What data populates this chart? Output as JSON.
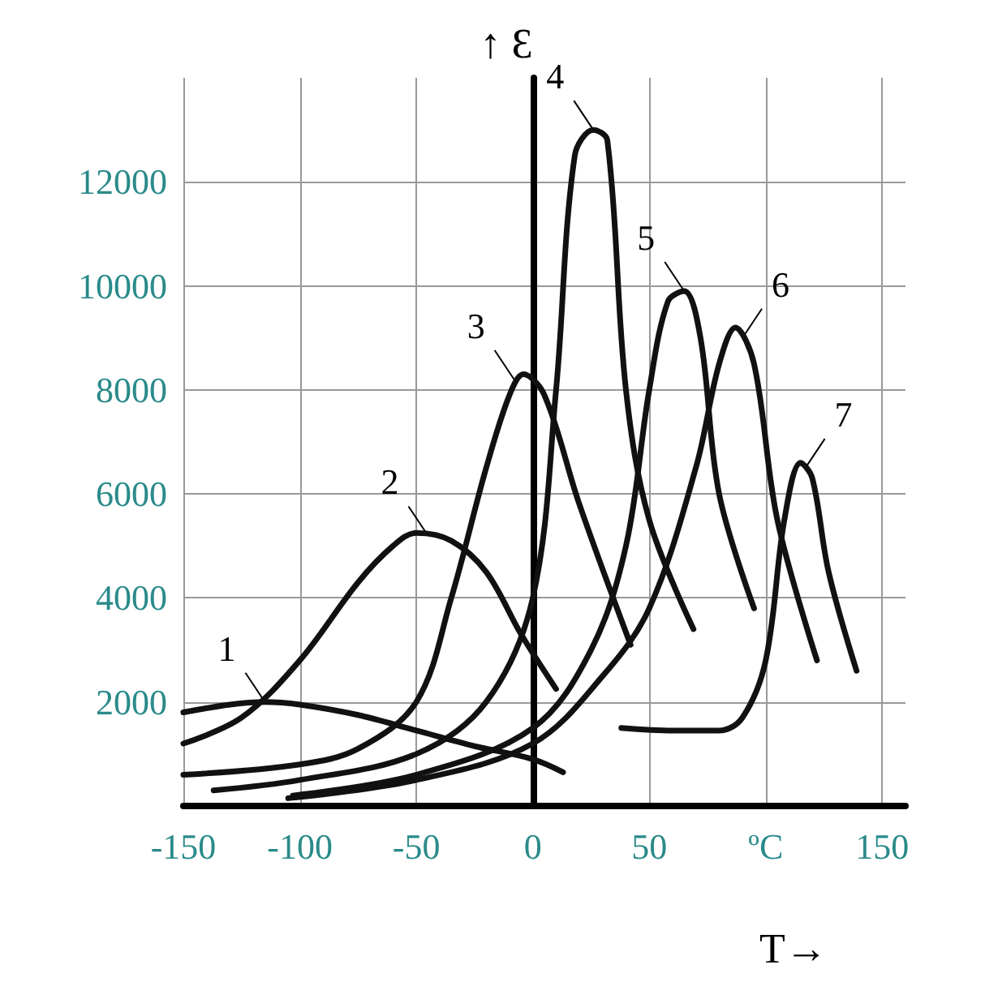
{
  "chart_data": {
    "type": "line",
    "xlabel": "T→",
    "ylabel": "↑ Ɛ",
    "xlim": [
      -150,
      160
    ],
    "ylim": [
      0,
      14000
    ],
    "xticks": [
      -150,
      -100,
      -50,
      0,
      50,
      {
        "value": 100,
        "label": "ºC"
      },
      150
    ],
    "yticks": [
      2000,
      4000,
      6000,
      8000,
      10000,
      12000
    ],
    "grid": true,
    "marker": "none",
    "line_style": "solid",
    "series": [
      {
        "color": "#111111",
        "x": [
          -150,
          -130,
          -115,
          -100,
          -75,
          -50,
          -25,
          0,
          13
        ],
        "values": [
          1800,
          1950,
          2000,
          1950,
          1750,
          1450,
          1150,
          900,
          650
        ]
      },
      {
        "color": "#111111",
        "x": [
          -150,
          -125,
          -100,
          -75,
          -60,
          -50,
          -35,
          -20,
          -5,
          10
        ],
        "values": [
          1200,
          1700,
          2800,
          4300,
          5000,
          5250,
          5100,
          4500,
          3300,
          2250
        ]
      },
      {
        "color": "#111111",
        "x": [
          -150,
          -100,
          -75,
          -50,
          -35,
          -20,
          -10,
          -4,
          5,
          20,
          42
        ],
        "values": [
          600,
          800,
          1100,
          2000,
          4000,
          6500,
          7900,
          8300,
          7900,
          5800,
          3100
        ]
      },
      {
        "color": "#111111",
        "x": [
          -137,
          -100,
          -50,
          -20,
          0,
          10,
          18,
          26,
          32,
          40,
          50,
          69
        ],
        "values": [
          300,
          500,
          1000,
          2000,
          4000,
          8000,
          12500,
          13000,
          12800,
          8000,
          5500,
          3400
        ]
      },
      {
        "color": "#111111",
        "x": [
          -103,
          -50,
          0,
          25,
          40,
          50,
          58,
          65,
          72,
          80,
          95
        ],
        "values": [
          200,
          600,
          1500,
          3000,
          5000,
          8000,
          9700,
          9900,
          9000,
          6000,
          3800
        ]
      },
      {
        "color": "#111111",
        "x": [
          -105,
          -50,
          0,
          30,
          50,
          70,
          80,
          87,
          95,
          105,
          122
        ],
        "values": [
          150,
          500,
          1200,
          2500,
          3800,
          6500,
          8500,
          9200,
          8500,
          5500,
          2800
        ]
      },
      {
        "color": "#111111",
        "x": [
          38,
          60,
          80,
          90,
          100,
          108,
          115,
          120,
          127,
          139
        ],
        "values": [
          1500,
          1450,
          1450,
          1700,
          2800,
          5500,
          6600,
          6300,
          4500,
          2600
        ]
      }
    ],
    "annotations": [
      {
        "text": "1",
        "x": -115,
        "y": 2000
      },
      {
        "text": "2",
        "x": -45,
        "y": 5200
      },
      {
        "text": "3",
        "x": -8,
        "y": 8200
      },
      {
        "text": "4",
        "x": 26,
        "y": 13000
      },
      {
        "text": "5",
        "x": 65,
        "y": 9900
      },
      {
        "text": "6",
        "x": 90,
        "y": 9000
      },
      {
        "text": "7",
        "x": 117,
        "y": 6500
      }
    ]
  }
}
